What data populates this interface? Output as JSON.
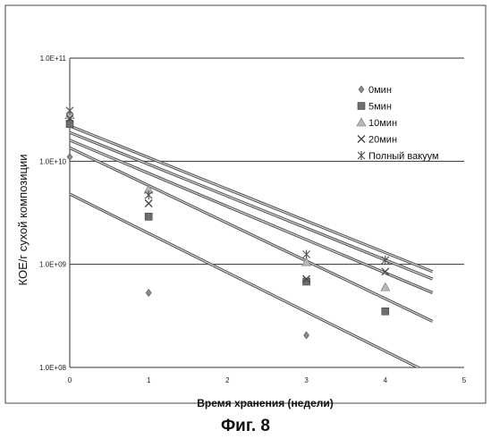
{
  "figure": {
    "caption": "Фиг. 8"
  },
  "chart_data": {
    "type": "scatter",
    "xlabel": "Время хранения (недели)",
    "ylabel": "КОЕ/г сухой композиции",
    "xlim": [
      0,
      5
    ],
    "ylim": [
      100000000,
      100000000000
    ],
    "yscale": "log",
    "x_ticks": [
      "0",
      "1",
      "2",
      "3",
      "4",
      "5"
    ],
    "y_ticks": [
      "1.0E+08",
      "1.0E+09",
      "1.0E+10",
      "1.0E+11"
    ],
    "grid": "horizontal",
    "legend_position": "top-right",
    "series": [
      {
        "name": "0мин",
        "marker": "diamond",
        "x": [
          0,
          1,
          3
        ],
        "y": [
          11000000000,
          530000000,
          205000000
        ],
        "trend": [
          4800000000,
          85000000
        ]
      },
      {
        "name": "5мин",
        "marker": "square",
        "x": [
          0,
          1,
          3,
          4
        ],
        "y": [
          23000000000,
          2900000000,
          680000000,
          350000000
        ],
        "trend": [
          13500000000,
          280000000
        ]
      },
      {
        "name": "10мин",
        "marker": "triangle",
        "x": [
          0,
          1,
          3,
          4
        ],
        "y": [
          28000000000,
          5300000000,
          1050000000,
          600000000
        ],
        "trend": [
          16000000000,
          530000000
        ]
      },
      {
        "name": "20мин",
        "marker": "x",
        "x": [
          0,
          1,
          3,
          4
        ],
        "y": [
          26000000000,
          3900000000,
          720000000,
          850000000
        ],
        "trend": [
          19000000000,
          720000000
        ]
      },
      {
        "name": "Полный вакуум",
        "marker": "asterisk",
        "x": [
          0,
          1,
          3,
          4
        ],
        "y": [
          31000000000,
          4700000000,
          1250000000,
          1100000000
        ],
        "trend": [
          22000000000,
          850000000
        ]
      }
    ]
  }
}
